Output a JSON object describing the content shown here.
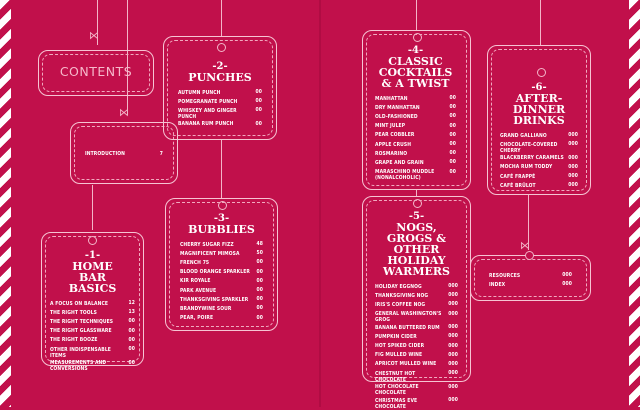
{
  "contents_title": "CONTENTS",
  "introduction": {
    "label": "INTRODUCTION",
    "page": "7"
  },
  "chapters": [
    {
      "number": "-1-",
      "title": "HOME BAR BASICS",
      "items": [
        {
          "label": "A FOCUS ON BALANCE",
          "page": "12"
        },
        {
          "label": "THE RIGHT TOOLS",
          "page": "13"
        },
        {
          "label": "THE RIGHT TECHNIQUES",
          "page": "00"
        },
        {
          "label": "THE RIGHT GLASSWARE",
          "page": "00"
        },
        {
          "label": "THE RIGHT BOOZE",
          "page": "00"
        },
        {
          "label": "OTHER INDISPENSABLE ITEMS",
          "page": "00"
        },
        {
          "label": "MEASUREMENTS AND CONVERSIONS",
          "page": "00"
        }
      ]
    },
    {
      "number": "-2-",
      "title": "PUNCHES",
      "items": [
        {
          "label": "AUTUMN PUNCH",
          "page": "00"
        },
        {
          "label": "POMEGRANATE PUNCH",
          "page": "00"
        },
        {
          "label": "WHISKEY AND GINGER PUNCH",
          "page": "00"
        },
        {
          "label": "BANANA RUM PUNCH",
          "page": "00"
        }
      ]
    },
    {
      "number": "-3-",
      "title": "BUBBLIES",
      "items": [
        {
          "label": "CHERRY SUGAR FIZZ",
          "page": "48"
        },
        {
          "label": "MAGNIFICENT MIMOSA",
          "page": "50"
        },
        {
          "label": "FRENCH 75",
          "page": "00"
        },
        {
          "label": "BLOOD ORANGE SPARKLER",
          "page": "00"
        },
        {
          "label": "KIR ROYALE",
          "page": "00"
        },
        {
          "label": "PARK AVENUE",
          "page": "00"
        },
        {
          "label": "THANKSGIVING SPARKLER",
          "page": "00"
        },
        {
          "label": "BRANDYWINE SOUR",
          "page": "00"
        },
        {
          "label": "PEAR, POIRE",
          "page": "00"
        }
      ]
    },
    {
      "number": "-4-",
      "title": "CLASSIC COCKTAILS & A TWIST",
      "items": [
        {
          "label": "MANHATTAN",
          "page": "00"
        },
        {
          "label": "DRY MANHATTAN",
          "page": "00"
        },
        {
          "label": "OLD-FASHIONED",
          "page": "00"
        },
        {
          "label": "MINT JULEP",
          "page": "00"
        },
        {
          "label": "PEAR COBBLER",
          "page": "00"
        },
        {
          "label": "APPLE CRUSH",
          "page": "00"
        },
        {
          "label": "ROSMARINO",
          "page": "00"
        },
        {
          "label": "GRAPE AND GRAIN",
          "page": "00"
        },
        {
          "label": "MARASCHINO MUDDLE (NONALCOHOLIC)",
          "page": "00"
        }
      ]
    },
    {
      "number": "-5-",
      "title": "NOGS, GROGS & OTHER HOLIDAY WARMERS",
      "items": [
        {
          "label": "HOLIDAY EGGNOG",
          "page": "000"
        },
        {
          "label": "THANKSGIVING NOG",
          "page": "000"
        },
        {
          "label": "IRIS'S COFFEE NOG",
          "page": "000"
        },
        {
          "label": "GENERAL WASHINGTON'S GROG",
          "page": "000"
        },
        {
          "label": "BANANA BUTTERED RUM",
          "page": "000"
        },
        {
          "label": "PUMPKIN CIDER",
          "page": "000"
        },
        {
          "label": "HOT SPIKED CIDER",
          "page": "000"
        },
        {
          "label": "FIG MULLED WINE",
          "page": "000"
        },
        {
          "label": "APRICOT MULLED WINE",
          "page": "000"
        },
        {
          "label": "CHESTNUT HOT CHOCOLATE",
          "page": "000"
        },
        {
          "label": "HOT CHOCOLATE CHOCOLATE",
          "page": "000"
        },
        {
          "label": "CHRISTMAS EVE CHOCOLATE",
          "page": "000"
        }
      ]
    },
    {
      "number": "-6-",
      "title": "AFTER-DINNER DRINKS",
      "items": [
        {
          "label": "GRAND GALLIANO",
          "page": "000"
        },
        {
          "label": "CHOCOLATE-COVERED CHERRY",
          "page": "000"
        },
        {
          "label": "BLACKBERRY CARAMELS",
          "page": "000"
        },
        {
          "label": "MOCHA RUM TODDY",
          "page": "000"
        },
        {
          "label": "CAFÉ FRAPPÉ",
          "page": "000"
        },
        {
          "label": "CAFÉ BRÛLOT",
          "page": "000"
        }
      ]
    }
  ],
  "back_matter": [
    {
      "label": "RESOURCES",
      "page": "000"
    },
    {
      "label": "INDEX",
      "page": "000"
    }
  ],
  "colors": {
    "background": "#c1104b",
    "line": "#f3b5c8"
  }
}
